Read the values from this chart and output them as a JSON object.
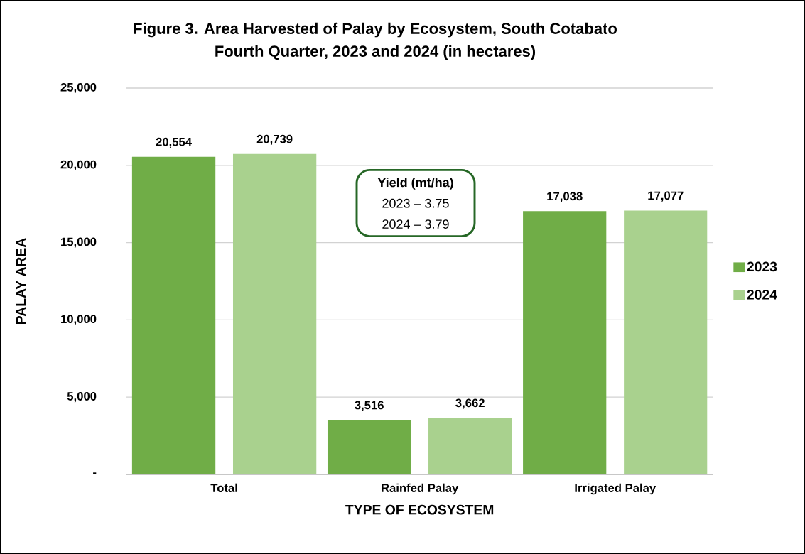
{
  "chart_data": {
    "type": "bar",
    "title": "Figure 3. Area Harvested of Palay by Ecosystem, South Cotabato\nFourth Quarter, 2023 and 2024 (in hectares)",
    "xlabel": "TYPE OF ECOSYSTEM",
    "ylabel": "PALAY AREA",
    "categories": [
      "Total",
      "Rainfed Palay",
      "Irrigated Palay"
    ],
    "series": [
      {
        "name": "2023",
        "color": "#70ad47",
        "values": [
          20554,
          3516,
          17038
        ],
        "value_labels": [
          "20,554",
          "3,516",
          "17,038"
        ]
      },
      {
        "name": "2024",
        "color": "#a9d18e",
        "values": [
          20739,
          3662,
          17077
        ],
        "value_labels": [
          "20,739",
          "3,662",
          "17,077"
        ]
      }
    ],
    "ylim": [
      0,
      25000
    ],
    "yticks": [
      {
        "value": 0,
        "label": "-"
      },
      {
        "value": 5000,
        "label": "5,000"
      },
      {
        "value": 10000,
        "label": "10,000"
      },
      {
        "value": 15000,
        "label": "15,000"
      },
      {
        "value": 20000,
        "label": "20,000"
      },
      {
        "value": 25000,
        "label": "25,000"
      }
    ],
    "grid": "y",
    "legend": "right",
    "annotations": [
      "Yield (mt/ha)",
      "2023 – 3.75",
      "2024 – 3.79"
    ]
  }
}
